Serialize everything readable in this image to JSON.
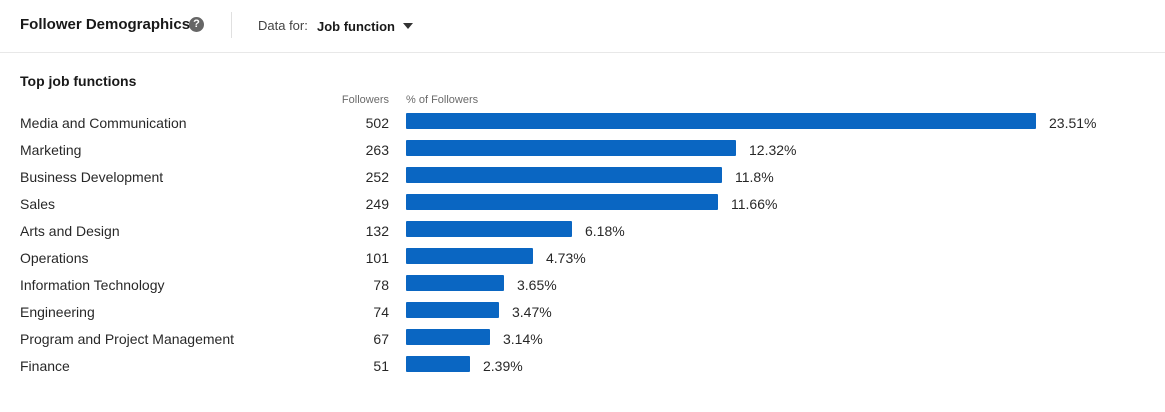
{
  "header": {
    "title": "Follower Demographics",
    "help_icon": "question-circle-icon",
    "data_for_label": "Data for:",
    "dropdown_value": "Job function"
  },
  "section": {
    "title": "Top job functions",
    "col_followers": "Followers",
    "col_pct": "% of Followers"
  },
  "colors": {
    "bar": "#0a66c2"
  },
  "chart_data": {
    "type": "bar",
    "categories": [
      "Media and Communication",
      "Marketing",
      "Business Development",
      "Sales",
      "Arts and Design",
      "Operations",
      "Information Technology",
      "Engineering",
      "Program and Project Management",
      "Finance"
    ],
    "followers": [
      502,
      263,
      252,
      249,
      132,
      101,
      78,
      74,
      67,
      51
    ],
    "percent_labels": [
      "23.51%",
      "12.32%",
      "11.8%",
      "11.66%",
      "6.18%",
      "4.73%",
      "3.65%",
      "3.47%",
      "3.14%",
      "2.39%"
    ],
    "values": [
      23.51,
      12.32,
      11.8,
      11.66,
      6.18,
      4.73,
      3.65,
      3.47,
      3.14,
      2.39
    ]
  }
}
